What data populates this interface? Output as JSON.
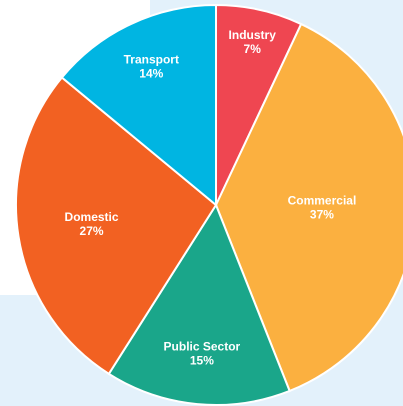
{
  "chart_data": {
    "type": "pie",
    "categories": [
      "Industry",
      "Commercial",
      "Public Sector",
      "Domestic",
      "Transport"
    ],
    "values": [
      7,
      37,
      15,
      27,
      14
    ],
    "value_labels": [
      "7%",
      "37%",
      "15%",
      "27%",
      "14%"
    ],
    "colors": [
      "#ef4651",
      "#fbb040",
      "#1aa68a",
      "#f26122",
      "#00b5e2"
    ]
  }
}
